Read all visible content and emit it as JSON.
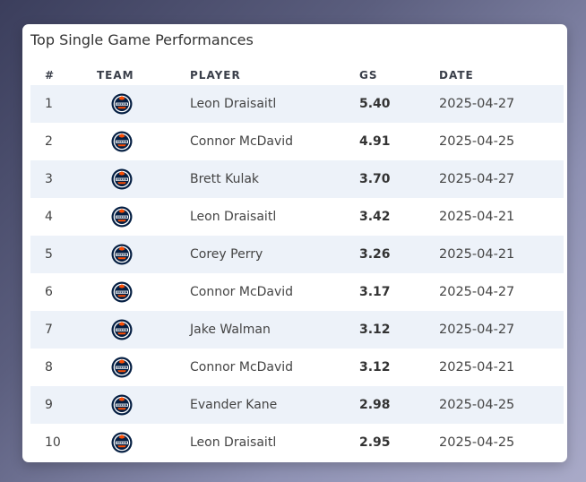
{
  "card": {
    "title": "Top Single Game Performances"
  },
  "columns": {
    "rank": "#",
    "team": "TEAM",
    "player": "PLAYER",
    "gs": "GS",
    "date": "DATE"
  },
  "team_logo": {
    "icon": "oilers-logo-icon",
    "colors": {
      "primary": "#041e42",
      "accent": "#fc4c02",
      "ring": "#ffffff"
    }
  },
  "rows": [
    {
      "rank": "1",
      "player": "Leon Draisaitl",
      "gs": "5.40",
      "date": "2025-04-27"
    },
    {
      "rank": "2",
      "player": "Connor McDavid",
      "gs": "4.91",
      "date": "2025-04-25"
    },
    {
      "rank": "3",
      "player": "Brett Kulak",
      "gs": "3.70",
      "date": "2025-04-27"
    },
    {
      "rank": "4",
      "player": "Leon Draisaitl",
      "gs": "3.42",
      "date": "2025-04-21"
    },
    {
      "rank": "5",
      "player": "Corey Perry",
      "gs": "3.26",
      "date": "2025-04-21"
    },
    {
      "rank": "6",
      "player": "Connor McDavid",
      "gs": "3.17",
      "date": "2025-04-27"
    },
    {
      "rank": "7",
      "player": "Jake Walman",
      "gs": "3.12",
      "date": "2025-04-27"
    },
    {
      "rank": "8",
      "player": "Connor McDavid",
      "gs": "3.12",
      "date": "2025-04-21"
    },
    {
      "rank": "9",
      "player": "Evander Kane",
      "gs": "2.98",
      "date": "2025-04-25"
    },
    {
      "rank": "10",
      "player": "Leon Draisaitl",
      "gs": "2.95",
      "date": "2025-04-25"
    }
  ]
}
